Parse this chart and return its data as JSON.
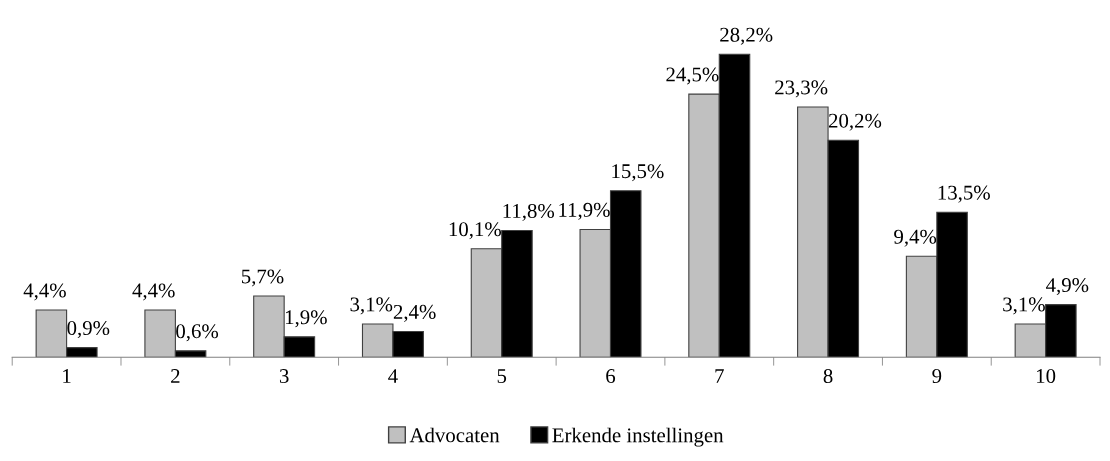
{
  "chart_data": {
    "type": "bar",
    "categories": [
      "1",
      "2",
      "3",
      "4",
      "5",
      "6",
      "7",
      "8",
      "9",
      "10"
    ],
    "series": [
      {
        "name": "Advocaten",
        "color": "#c0c0c0",
        "values": [
          4.4,
          4.4,
          5.7,
          3.1,
          10.1,
          11.9,
          24.5,
          23.3,
          9.4,
          3.1
        ],
        "value_labels": [
          "4,4%",
          "4,4%",
          "5,7%",
          "3,1%",
          "10,1%",
          "11,9%",
          "24,5%",
          "23,3%",
          "9,4%",
          "3,1%"
        ]
      },
      {
        "name": "Erkende instellingen",
        "color": "#000000",
        "values": [
          0.9,
          0.6,
          1.9,
          2.4,
          11.8,
          15.5,
          28.2,
          20.2,
          13.5,
          4.9
        ],
        "value_labels": [
          "0,9%",
          "0,6%",
          "1,9%",
          "2,4%",
          "11,8%",
          "15,5%",
          "28,2%",
          "20,2%",
          "13,5%",
          "4,9%"
        ]
      }
    ],
    "legend": "bottom",
    "grid": false
  }
}
